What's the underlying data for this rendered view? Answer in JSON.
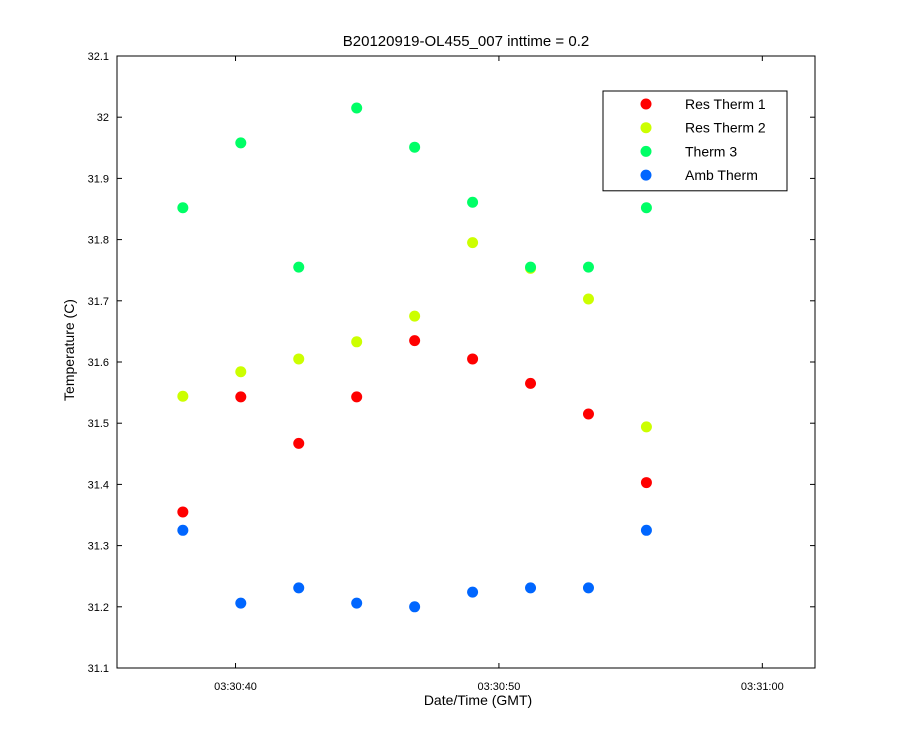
{
  "chart_data": {
    "type": "scatter",
    "title": "B20120919-OL455_007 inttime = 0.2",
    "xlabel": "Date/Time (GMT)",
    "ylabel": "Temperature (C)",
    "xlim": [
      "03:30:35.5",
      "03:31:02"
    ],
    "ylim": [
      31.1,
      32.1
    ],
    "x_ticks": [
      "03:30:40",
      "03:30:50",
      "03:31:00"
    ],
    "y_ticks": [
      "31.1",
      "31.2",
      "31.3",
      "31.4",
      "31.5",
      "31.6",
      "31.7",
      "31.8",
      "31.9",
      "32",
      "32.1"
    ],
    "grid": false,
    "legend_position": "top-right",
    "series": [
      {
        "name": "Res Therm 1",
        "color": "#ff0000",
        "points": [
          {
            "x": "03:30:38.0",
            "y": 31.355
          },
          {
            "x": "03:30:40.2",
            "y": 31.543
          },
          {
            "x": "03:30:42.4",
            "y": 31.467
          },
          {
            "x": "03:30:44.6",
            "y": 31.543
          },
          {
            "x": "03:30:46.8",
            "y": 31.635
          },
          {
            "x": "03:30:49.0",
            "y": 31.605
          },
          {
            "x": "03:30:51.2",
            "y": 31.565
          },
          {
            "x": "03:30:53.4",
            "y": 31.515
          },
          {
            "x": "03:30:55.6",
            "y": 31.403
          }
        ]
      },
      {
        "name": "Res Therm 2",
        "color": "#ccff00",
        "points": [
          {
            "x": "03:30:38.0",
            "y": 31.544
          },
          {
            "x": "03:30:40.2",
            "y": 31.584
          },
          {
            "x": "03:30:42.4",
            "y": 31.605
          },
          {
            "x": "03:30:44.6",
            "y": 31.633
          },
          {
            "x": "03:30:46.8",
            "y": 31.675
          },
          {
            "x": "03:30:49.0",
            "y": 31.795
          },
          {
            "x": "03:30:51.2",
            "y": 31.753
          },
          {
            "x": "03:30:53.4",
            "y": 31.703
          },
          {
            "x": "03:30:55.6",
            "y": 31.494
          }
        ]
      },
      {
        "name": "Therm 3",
        "color": "#00ff66",
        "points": [
          {
            "x": "03:30:38.0",
            "y": 31.852
          },
          {
            "x": "03:30:40.2",
            "y": 31.958
          },
          {
            "x": "03:30:42.4",
            "y": 31.755
          },
          {
            "x": "03:30:44.6",
            "y": 32.015
          },
          {
            "x": "03:30:46.8",
            "y": 31.951
          },
          {
            "x": "03:30:49.0",
            "y": 31.861
          },
          {
            "x": "03:30:51.2",
            "y": 31.755
          },
          {
            "x": "03:30:53.4",
            "y": 31.755
          },
          {
            "x": "03:30:55.6",
            "y": 31.852
          }
        ]
      },
      {
        "name": "Amb Therm",
        "color": "#0066ff",
        "points": [
          {
            "x": "03:30:38.0",
            "y": 31.325
          },
          {
            "x": "03:30:40.2",
            "y": 31.206
          },
          {
            "x": "03:30:42.4",
            "y": 31.231
          },
          {
            "x": "03:30:44.6",
            "y": 31.206
          },
          {
            "x": "03:30:46.8",
            "y": 31.2
          },
          {
            "x": "03:30:49.0",
            "y": 31.224
          },
          {
            "x": "03:30:51.2",
            "y": 31.231
          },
          {
            "x": "03:30:53.4",
            "y": 31.231
          },
          {
            "x": "03:30:55.6",
            "y": 31.325
          }
        ]
      }
    ]
  }
}
